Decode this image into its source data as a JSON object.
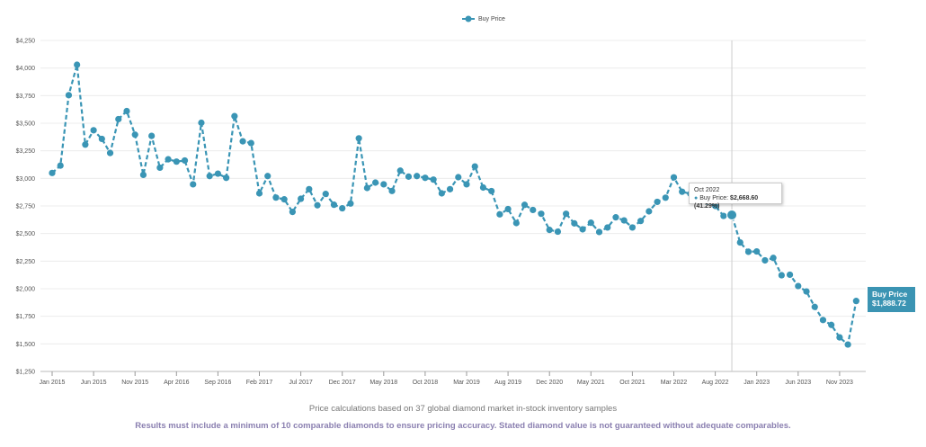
{
  "chart_data": {
    "type": "line",
    "title": "",
    "xlabel": "",
    "ylabel": "",
    "legend": {
      "label": "Buy Price",
      "placement": "top-center"
    },
    "series": [
      {
        "name": "Buy Price",
        "color": "#3a95b5",
        "style": "dashed-with-markers",
        "values": [
          3049,
          3116,
          3754,
          4030,
          3306,
          3436,
          3358,
          3230,
          3537,
          3610,
          3396,
          3032,
          3385,
          3097,
          3173,
          3152,
          3162,
          2946,
          3504,
          3021,
          3043,
          3005,
          3564,
          3336,
          3320,
          2864,
          3021,
          2826,
          2810,
          2696,
          2815,
          2902,
          2756,
          2859,
          2761,
          2729,
          2772,
          3363,
          2913,
          2962,
          2946,
          2886,
          3070,
          3016,
          3021,
          3005,
          2989,
          2864,
          2902,
          3011,
          2946,
          3108,
          2917,
          2885,
          2674,
          2722,
          2595,
          2760,
          2714,
          2679,
          2533,
          2517,
          2679,
          2592,
          2538,
          2598,
          2514,
          2555,
          2647,
          2619,
          2555,
          2614,
          2701,
          2787,
          2825,
          3009,
          2879,
          2860,
          2820,
          2790,
          2750,
          2660,
          2668.6,
          2419,
          2335,
          2338,
          2257,
          2279,
          2122,
          2127,
          2024,
          1975,
          1835,
          1716,
          1672,
          1559,
          1494,
          1888.72
        ]
      }
    ],
    "x_ticks": [
      {
        "index": 0,
        "label": "Jan 2015"
      },
      {
        "index": 5,
        "label": "Jun 2015"
      },
      {
        "index": 10,
        "label": "Nov 2015"
      },
      {
        "index": 15,
        "label": "Apr 2016"
      },
      {
        "index": 20,
        "label": "Sep 2016"
      },
      {
        "index": 25,
        "label": "Feb 2017"
      },
      {
        "index": 30,
        "label": "Jul 2017"
      },
      {
        "index": 35,
        "label": "Dec 2017"
      },
      {
        "index": 40,
        "label": "May 2018"
      },
      {
        "index": 45,
        "label": "Oct 2018"
      },
      {
        "index": 50,
        "label": "Mar 2019"
      },
      {
        "index": 55,
        "label": "Aug 2019"
      },
      {
        "index": 60,
        "label": "Dec 2020"
      },
      {
        "index": 65,
        "label": "May 2021"
      },
      {
        "index": 70,
        "label": "Oct 2021"
      },
      {
        "index": 75,
        "label": "Mar 2022"
      },
      {
        "index": 80,
        "label": "Aug 2022"
      },
      {
        "index": 85,
        "label": "Jan 2023"
      },
      {
        "index": 90,
        "label": "Jun 2023"
      },
      {
        "index": 95,
        "label": "Nov 2023"
      }
    ],
    "y_ticks": [
      "$1,250",
      "$1,500",
      "$1,750",
      "$2,000",
      "$2,250",
      "$2,500",
      "$2,750",
      "$3,000",
      "$3,250",
      "$3,500",
      "$3,750",
      "$4,000",
      "$4,250"
    ],
    "ylim": [
      1250,
      4250
    ],
    "y_step": 250,
    "grid": true,
    "highlight_index": 82
  },
  "tooltip": {
    "title": "Oct 2022",
    "series": "Buy Price:",
    "value": "$2,668.60 (41.29%)"
  },
  "end_label": {
    "title": "Buy Price",
    "value": "$1,888.72"
  },
  "footer": {
    "samples": "Price calculations based on 37 global diamond market in-stock inventory samples",
    "disclaimer": "Results must include a minimum of 10 comparable diamonds to ensure pricing accuracy. Stated diamond value is not guaranteed without adequate comparables."
  }
}
